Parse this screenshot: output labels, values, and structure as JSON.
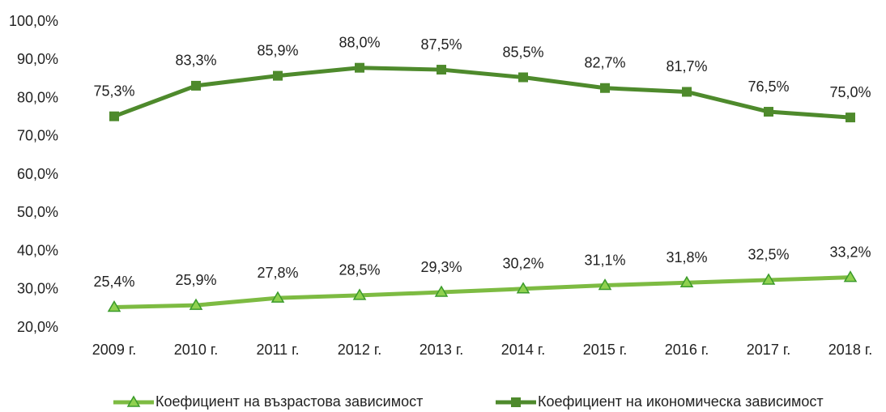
{
  "chart_data": {
    "type": "line",
    "categories": [
      "2009 г.",
      "2010 г.",
      "2011 г.",
      "2012 г.",
      "2013 г.",
      "2014 г.",
      "2015 г.",
      "2016 г.",
      "2017 г.",
      "2018 г."
    ],
    "series": [
      {
        "name": "Коефициент на възрастова зависимост",
        "color": "#7dbb42",
        "marker": "triangle",
        "values": [
          25.4,
          25.9,
          27.8,
          28.5,
          29.3,
          30.2,
          31.1,
          31.8,
          32.5,
          33.2
        ],
        "value_labels": [
          "25,4%",
          "25,9%",
          "27,8%",
          "28,5%",
          "29,3%",
          "30,2%",
          "31,1%",
          "31,8%",
          "32,5%",
          "33,2%"
        ]
      },
      {
        "name": "Коефициент на икономическа зависимост",
        "color": "#4e8a2c",
        "marker": "square",
        "values": [
          75.3,
          83.3,
          85.9,
          88.0,
          87.5,
          85.5,
          82.7,
          81.7,
          76.5,
          75.0
        ],
        "value_labels": [
          "75,3%",
          "83,3%",
          "85,9%",
          "88,0%",
          "87,5%",
          "85,5%",
          "82,7%",
          "81,7%",
          "76,5%",
          "75,0%"
        ]
      }
    ],
    "ylim": [
      20,
      100
    ],
    "yticks": [
      {
        "value": 20,
        "label": "20,0%"
      },
      {
        "value": 30,
        "label": "30,0%"
      },
      {
        "value": 40,
        "label": "40,0%"
      },
      {
        "value": 50,
        "label": "50,0%"
      },
      {
        "value": 60,
        "label": "60,0%"
      },
      {
        "value": 70,
        "label": "70,0%"
      },
      {
        "value": 80,
        "label": "80,0%"
      },
      {
        "value": 90,
        "label": "90,0%"
      },
      {
        "value": 100,
        "label": "100,0%"
      }
    ],
    "grid": false,
    "legend": "bottom"
  }
}
